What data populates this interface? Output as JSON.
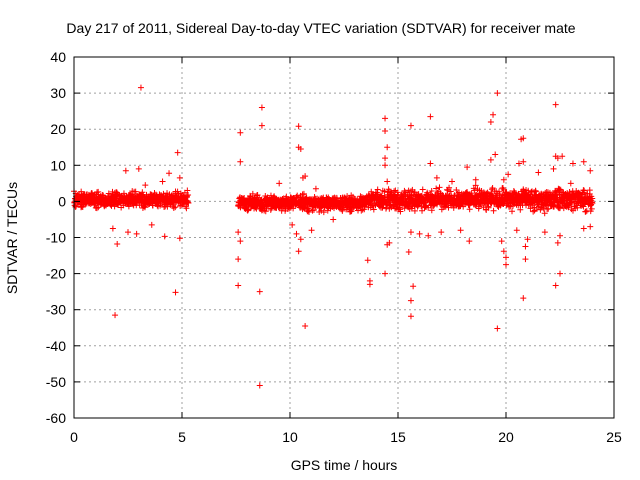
{
  "chart_data": {
    "type": "scatter",
    "title": "Day 217 of 2011, Sidereal Day-to-day VTEC variation (SDTVAR) for receiver mate",
    "xlabel": "GPS time / hours",
    "ylabel": "SDTVAR / TECUs",
    "xlim": [
      0,
      25
    ],
    "ylim": [
      -60,
      40
    ],
    "xticks": [
      "0",
      "5",
      "10",
      "15",
      "20",
      "25"
    ],
    "yticks": [
      "40",
      "30",
      "20",
      "10",
      "0",
      "-10",
      "-20",
      "-30",
      "-40",
      "-50",
      "-60"
    ],
    "grid": true,
    "marker": "+",
    "colors": {
      "points": "#ff0000",
      "grid": "#a0a0a0",
      "axes": "#000000"
    },
    "dense_segments": [
      {
        "x_start": 0.0,
        "x_end": 5.3,
        "center": 0.5,
        "spread": 1.6
      },
      {
        "x_start": 7.6,
        "x_end": 13.5,
        "center": -0.5,
        "spread": 1.6
      },
      {
        "x_start": 13.5,
        "x_end": 24.0,
        "center": 0.5,
        "spread": 2.2
      }
    ],
    "outliers": [
      {
        "x": 3.1,
        "y": 31.5
      },
      {
        "x": 1.9,
        "y": -31.5
      },
      {
        "x": 4.7,
        "y": -25.2
      },
      {
        "x": 4.8,
        "y": 13.5
      },
      {
        "x": 4.9,
        "y": 6.5
      },
      {
        "x": 4.9,
        "y": -10.2
      },
      {
        "x": 4.4,
        "y": 7.8
      },
      {
        "x": 4.1,
        "y": 5.5
      },
      {
        "x": 4.2,
        "y": -9.7
      },
      {
        "x": 3.0,
        "y": 9.0
      },
      {
        "x": 2.4,
        "y": 8.5
      },
      {
        "x": 2.0,
        "y": -11.8
      },
      {
        "x": 2.5,
        "y": -8.5
      },
      {
        "x": 3.3,
        "y": 4.5
      },
      {
        "x": 1.8,
        "y": -7.5
      },
      {
        "x": 3.6,
        "y": -6.5
      },
      {
        "x": 2.9,
        "y": -9.0
      },
      {
        "x": 8.7,
        "y": 26.0
      },
      {
        "x": 8.7,
        "y": 21.0
      },
      {
        "x": 7.7,
        "y": 19.0
      },
      {
        "x": 7.7,
        "y": 11.0
      },
      {
        "x": 7.6,
        "y": -8.5
      },
      {
        "x": 7.7,
        "y": -11.0
      },
      {
        "x": 7.6,
        "y": -16.0
      },
      {
        "x": 7.6,
        "y": -23.3
      },
      {
        "x": 8.6,
        "y": -25.0
      },
      {
        "x": 8.6,
        "y": -51.0
      },
      {
        "x": 10.4,
        "y": 20.8
      },
      {
        "x": 10.4,
        "y": 15.0
      },
      {
        "x": 10.5,
        "y": 14.5
      },
      {
        "x": 10.7,
        "y": 7.0
      },
      {
        "x": 10.6,
        "y": 6.5
      },
      {
        "x": 11.2,
        "y": 3.5
      },
      {
        "x": 10.3,
        "y": -9.0
      },
      {
        "x": 10.4,
        "y": -13.8
      },
      {
        "x": 10.7,
        "y": -34.5
      },
      {
        "x": 10.5,
        "y": -10.5
      },
      {
        "x": 10.1,
        "y": -6.5
      },
      {
        "x": 11.0,
        "y": -8.0
      },
      {
        "x": 13.6,
        "y": -16.3
      },
      {
        "x": 13.7,
        "y": -22.0
      },
      {
        "x": 13.7,
        "y": -23.0
      },
      {
        "x": 14.4,
        "y": 23.0
      },
      {
        "x": 14.4,
        "y": 19.5
      },
      {
        "x": 14.5,
        "y": 15.0
      },
      {
        "x": 14.4,
        "y": 12.0
      },
      {
        "x": 14.4,
        "y": 10.0
      },
      {
        "x": 14.5,
        "y": 5.5
      },
      {
        "x": 14.4,
        "y": -20.0
      },
      {
        "x": 14.5,
        "y": -12.0
      },
      {
        "x": 14.6,
        "y": -11.5
      },
      {
        "x": 15.6,
        "y": 21.0
      },
      {
        "x": 15.5,
        "y": -14.0
      },
      {
        "x": 15.7,
        "y": -23.5
      },
      {
        "x": 15.6,
        "y": -27.5
      },
      {
        "x": 15.6,
        "y": -31.8
      },
      {
        "x": 15.6,
        "y": -8.5
      },
      {
        "x": 16.5,
        "y": 23.5
      },
      {
        "x": 16.5,
        "y": 10.5
      },
      {
        "x": 16.8,
        "y": 6.5
      },
      {
        "x": 17.5,
        "y": 5.5
      },
      {
        "x": 18.2,
        "y": 9.5
      },
      {
        "x": 18.3,
        "y": -11.0
      },
      {
        "x": 16.4,
        "y": -9.5
      },
      {
        "x": 17.9,
        "y": -8.0
      },
      {
        "x": 18.6,
        "y": 6.0
      },
      {
        "x": 19.3,
        "y": 22.0
      },
      {
        "x": 19.4,
        "y": 24.0
      },
      {
        "x": 19.6,
        "y": 30.0
      },
      {
        "x": 19.5,
        "y": 13.0
      },
      {
        "x": 19.3,
        "y": 11.5
      },
      {
        "x": 19.6,
        "y": -35.2
      },
      {
        "x": 19.8,
        "y": -11.0
      },
      {
        "x": 19.9,
        "y": -13.8
      },
      {
        "x": 20.0,
        "y": -15.5
      },
      {
        "x": 20.0,
        "y": -17.5
      },
      {
        "x": 19.9,
        "y": 6.0
      },
      {
        "x": 20.1,
        "y": 7.5
      },
      {
        "x": 20.7,
        "y": 17.2
      },
      {
        "x": 20.8,
        "y": 17.5
      },
      {
        "x": 20.8,
        "y": 11.0
      },
      {
        "x": 20.6,
        "y": 10.5
      },
      {
        "x": 20.8,
        "y": -26.8
      },
      {
        "x": 20.9,
        "y": -16.0
      },
      {
        "x": 20.9,
        "y": -12.5
      },
      {
        "x": 21.0,
        "y": -10.5
      },
      {
        "x": 20.5,
        "y": -8.0
      },
      {
        "x": 22.3,
        "y": 26.8
      },
      {
        "x": 22.3,
        "y": 12.5
      },
      {
        "x": 22.4,
        "y": 12.0
      },
      {
        "x": 22.6,
        "y": 12.5
      },
      {
        "x": 22.2,
        "y": 9.0
      },
      {
        "x": 22.3,
        "y": -23.3
      },
      {
        "x": 22.5,
        "y": -20.0
      },
      {
        "x": 22.4,
        "y": -11.5
      },
      {
        "x": 22.5,
        "y": -9.5
      },
      {
        "x": 23.1,
        "y": 10.5
      },
      {
        "x": 23.6,
        "y": 11.0
      },
      {
        "x": 23.9,
        "y": 8.5
      },
      {
        "x": 23.9,
        "y": -7.0
      },
      {
        "x": 23.6,
        "y": -7.5
      },
      {
        "x": 23.0,
        "y": 5.0
      },
      {
        "x": 21.5,
        "y": 8.0
      },
      {
        "x": 21.8,
        "y": -8.5
      },
      {
        "x": 16.0,
        "y": -9.0
      },
      {
        "x": 17.0,
        "y": -8.5
      },
      {
        "x": 12.0,
        "y": -5.0
      },
      {
        "x": 9.5,
        "y": 5.0
      }
    ]
  }
}
